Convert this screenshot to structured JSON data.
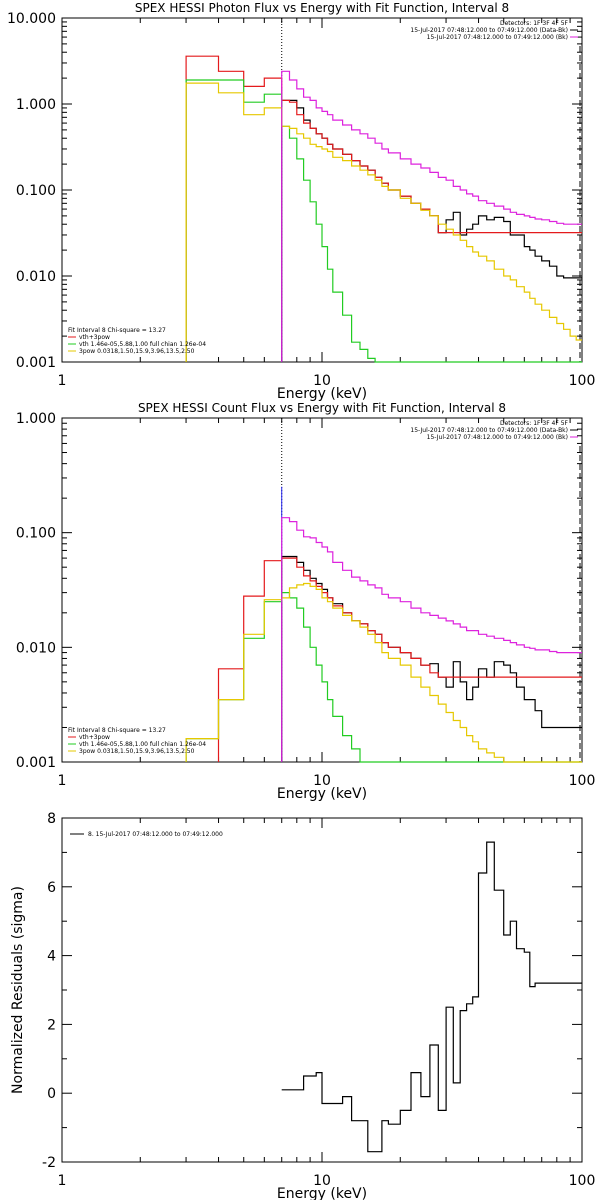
{
  "chart_data": [
    {
      "type": "line",
      "title": "SPEX HESSI Photon Flux vs Energy with Fit Function, Interval 8",
      "xlabel": "Energy (keV)",
      "ylabel": "",
      "xscale": "log",
      "yscale": "log",
      "xlim": [
        1,
        100
      ],
      "ylim": [
        0.001,
        10.0
      ],
      "xtick_labels": [
        "1",
        "10",
        "100"
      ],
      "ytick_labels": [
        "0.001",
        "0.010",
        "0.100",
        "1.000",
        "10.000"
      ],
      "vline": 7.0,
      "legend_topright": [
        "Detectors: 1F 3F 4F 5F",
        "15-Jul-2017 07:48:12.000 to 07:49:12.000 (Data-Bk)",
        "15-Jul-2017 07:48:12.000 to 07:49:12.000 (Bk)"
      ],
      "legend_bottomleft": [
        "Fit Interval 8   Chi-square = 13.27",
        "vth+3pow",
        "vth 1.46e-05,5.88,1.00  full chian 1.26e-04",
        "3pow 0.0318,1.50,15.9,3.96,13.5,2.50"
      ],
      "series": [
        {
          "color": "#000000",
          "x": [
            7.0,
            7.5,
            8.0,
            8.5,
            9.0,
            9.5,
            10.0,
            10.5,
            11.0,
            12.0,
            13.0,
            14.0,
            15.0,
            16.0,
            17.0,
            18.0,
            20.0,
            22.0,
            24.0,
            26.0,
            28.0,
            30.0,
            32.0,
            34.0,
            36.0,
            38.0,
            40.0,
            43.0,
            46.0,
            50.0,
            53.0,
            56.0,
            60.0,
            63.0,
            66.0,
            70.0,
            75.0,
            80.0,
            85.0,
            90.0,
            95.0,
            100.0
          ],
          "y": [
            1.1,
            1.1,
            0.9,
            0.65,
            0.52,
            0.45,
            0.4,
            0.34,
            0.3,
            0.26,
            0.22,
            0.19,
            0.17,
            0.14,
            0.12,
            0.1,
            0.085,
            0.07,
            0.06,
            0.05,
            0.032,
            0.045,
            0.055,
            0.03,
            0.035,
            0.04,
            0.05,
            0.045,
            0.048,
            0.043,
            0.03,
            0.03,
            0.022,
            0.02,
            0.017,
            0.015,
            0.013,
            0.01,
            0.0095,
            0.0095,
            0.0095,
            0.0095
          ]
        },
        {
          "color": "#e41a1c",
          "x": [
            3.0,
            4.0,
            5.0,
            6.0,
            7.0,
            7.5,
            8.0,
            8.5,
            9.0,
            9.5,
            10.0,
            10.5,
            11.0,
            12.0,
            13.0,
            14.0,
            15.0,
            16.0,
            17.0,
            18.0,
            20.0,
            22.0,
            24.0,
            26.0,
            28.0,
            30.0
          ],
          "y": [
            3.6,
            2.4,
            1.6,
            2.0,
            1.1,
            1.05,
            0.75,
            0.6,
            0.52,
            0.45,
            0.4,
            0.34,
            0.3,
            0.26,
            0.22,
            0.19,
            0.17,
            0.14,
            0.12,
            0.1,
            0.085,
            0.07,
            0.06,
            0.05,
            0.032,
            0.032
          ]
        },
        {
          "color": "#22cc22",
          "x": [
            3.0,
            4.0,
            5.0,
            6.0,
            7.0,
            7.5,
            8.0,
            8.5,
            9.0,
            9.5,
            10.0,
            10.5,
            11.0,
            12.0,
            13.0,
            14.0,
            15.0,
            16.0,
            17.0,
            18.0,
            20.0,
            22.0
          ],
          "y": [
            1.9,
            1.9,
            1.05,
            1.3,
            0.55,
            0.4,
            0.23,
            0.13,
            0.073,
            0.04,
            0.022,
            0.012,
            0.0065,
            0.0035,
            0.0017,
            0.0014,
            0.0011,
            0.001,
            0.001,
            0.001,
            0.001,
            0.001
          ]
        },
        {
          "color": "#e6c800",
          "x": [
            3.0,
            4.0,
            5.0,
            6.0,
            7.0,
            7.5,
            8.0,
            8.5,
            9.0,
            9.5,
            10.0,
            10.5,
            11.0,
            12.0,
            13.0,
            14.0,
            15.0,
            16.0,
            17.0,
            18.0,
            20.0,
            22.0,
            24.0,
            26.0,
            28.0,
            30.0,
            32.0,
            34.0,
            36.0,
            38.0,
            40.0,
            43.0,
            46.0,
            50.0,
            53.0,
            56.0,
            60.0,
            63.0,
            66.0,
            70.0,
            75.0,
            80.0,
            85.0,
            90.0,
            95.0,
            100.0
          ],
          "y": [
            1.75,
            1.35,
            0.75,
            0.9,
            0.55,
            0.52,
            0.45,
            0.4,
            0.34,
            0.32,
            0.3,
            0.28,
            0.24,
            0.22,
            0.19,
            0.17,
            0.15,
            0.13,
            0.11,
            0.1,
            0.08,
            0.07,
            0.058,
            0.05,
            0.04,
            0.035,
            0.03,
            0.026,
            0.022,
            0.019,
            0.017,
            0.015,
            0.012,
            0.01,
            0.009,
            0.0075,
            0.0065,
            0.0055,
            0.0047,
            0.004,
            0.0033,
            0.0028,
            0.0024,
            0.002,
            0.0018,
            0.0018
          ]
        },
        {
          "color": "#dd22dd",
          "x": [
            7.0,
            7.5,
            8.0,
            8.5,
            9.0,
            9.5,
            10.0,
            10.5,
            11.0,
            12.0,
            13.0,
            14.0,
            15.0,
            16.0,
            17.0,
            18.0,
            20.0,
            22.0,
            24.0,
            26.0,
            28.0,
            30.0,
            32.0,
            34.0,
            36.0,
            38.0,
            40.0,
            43.0,
            46.0,
            50.0,
            53.0,
            56.0,
            60.0,
            63.0,
            66.0,
            70.0,
            75.0,
            80.0,
            85.0,
            90.0,
            95.0,
            100.0
          ],
          "y": [
            2.4,
            1.9,
            1.5,
            1.2,
            1.1,
            0.9,
            0.82,
            0.75,
            0.65,
            0.57,
            0.5,
            0.45,
            0.4,
            0.35,
            0.3,
            0.27,
            0.23,
            0.2,
            0.18,
            0.16,
            0.14,
            0.13,
            0.11,
            0.1,
            0.09,
            0.085,
            0.075,
            0.07,
            0.065,
            0.06,
            0.055,
            0.052,
            0.05,
            0.048,
            0.046,
            0.045,
            0.043,
            0.041,
            0.04,
            0.04,
            0.04,
            0.04
          ]
        }
      ]
    },
    {
      "type": "line",
      "title": "SPEX HESSI Count Flux vs Energy with Fit Function, Interval 8",
      "xlabel": "Energy (keV)",
      "ylabel": "",
      "xscale": "log",
      "yscale": "log",
      "xlim": [
        1,
        100
      ],
      "ylim": [
        0.001,
        1.0
      ],
      "xtick_labels": [
        "1",
        "10",
        "100"
      ],
      "ytick_labels": [
        "0.001",
        "0.010",
        "0.100",
        "1.000"
      ],
      "vline": 7.0,
      "legend_topright": [
        "Detectors: 1F 3F 4F 5F",
        "15-Jul-2017 07:48:12.000 to 07:49:12.000 (Data-Bk)",
        "15-Jul-2017 07:48:12.000 to 07:49:12.000 (Bk)"
      ],
      "legend_bottomleft": [
        "Fit Interval 8   Chi-square = 13.27",
        "vth+3pow",
        "vth 1.46e-05,5.88,1.00  full chian 1.26e-04",
        "3pow 0.0318,1.50,15.9,3.96,13.5,2.50"
      ],
      "series": [
        {
          "color": "#000000",
          "x": [
            7.0,
            7.5,
            8.0,
            8.5,
            9.0,
            9.5,
            10.0,
            10.5,
            11.0,
            12.0,
            13.0,
            14.0,
            15.0,
            16.0,
            17.0,
            18.0,
            20.0,
            22.0,
            24.0,
            26.0,
            28.0,
            30.0,
            32.0,
            34.0,
            36.0,
            38.0,
            40.0,
            43.0,
            46.0,
            50.0,
            53.0,
            56.0,
            60.0,
            63.0,
            66.0,
            70.0,
            75.0,
            80.0,
            85.0,
            90.0,
            95.0,
            100.0
          ],
          "y": [
            0.062,
            0.062,
            0.055,
            0.047,
            0.04,
            0.036,
            0.032,
            0.027,
            0.024,
            0.02,
            0.017,
            0.016,
            0.014,
            0.013,
            0.011,
            0.01,
            0.009,
            0.008,
            0.007,
            0.0072,
            0.0055,
            0.0045,
            0.0075,
            0.005,
            0.0035,
            0.0045,
            0.0065,
            0.0055,
            0.0075,
            0.007,
            0.006,
            0.0045,
            0.0035,
            0.0035,
            0.0028,
            0.002,
            0.002,
            0.002,
            0.002,
            0.002,
            0.002,
            0.002
          ]
        },
        {
          "color": "#e41a1c",
          "x": [
            4.0,
            5.0,
            6.0,
            7.0,
            7.5,
            8.0,
            8.5,
            9.0,
            9.5,
            10.0,
            10.5,
            11.0,
            12.0,
            13.0,
            14.0,
            15.0,
            16.0,
            17.0,
            18.0,
            20.0,
            22.0,
            24.0,
            26.0,
            28.0,
            30.0
          ],
          "y": [
            0.0065,
            0.028,
            0.057,
            0.06,
            0.06,
            0.05,
            0.042,
            0.038,
            0.034,
            0.03,
            0.027,
            0.023,
            0.02,
            0.017,
            0.016,
            0.014,
            0.013,
            0.011,
            0.01,
            0.009,
            0.008,
            0.007,
            0.006,
            0.0055,
            0.0055
          ]
        },
        {
          "color": "#22cc22",
          "x": [
            3.0,
            4.0,
            5.0,
            6.0,
            7.0,
            7.5,
            8.0,
            8.5,
            9.0,
            9.5,
            10.0,
            10.5,
            11.0,
            12.0,
            13.0,
            14.0,
            15.0,
            16.0,
            17.0,
            18.0
          ],
          "y": [
            0.0016,
            0.0035,
            0.012,
            0.025,
            0.03,
            0.027,
            0.022,
            0.015,
            0.01,
            0.007,
            0.005,
            0.0035,
            0.0025,
            0.0017,
            0.0013,
            0.001,
            0.001,
            0.001,
            0.001,
            0.001
          ]
        },
        {
          "color": "#e6c800",
          "x": [
            3.0,
            4.0,
            5.0,
            6.0,
            7.0,
            7.5,
            8.0,
            8.5,
            9.0,
            9.5,
            10.0,
            10.5,
            11.0,
            12.0,
            13.0,
            14.0,
            15.0,
            16.0,
            17.0,
            18.0,
            20.0,
            22.0,
            24.0,
            26.0,
            28.0,
            30.0,
            32.0,
            34.0,
            36.0,
            38.0,
            40.0,
            43.0,
            46.0,
            50.0,
            53.0,
            56.0,
            60.0
          ],
          "y": [
            0.0016,
            0.0035,
            0.013,
            0.026,
            0.027,
            0.033,
            0.035,
            0.036,
            0.034,
            0.032,
            0.027,
            0.025,
            0.022,
            0.019,
            0.017,
            0.015,
            0.013,
            0.011,
            0.009,
            0.008,
            0.007,
            0.0055,
            0.0045,
            0.0038,
            0.0032,
            0.0027,
            0.0023,
            0.002,
            0.0017,
            0.0015,
            0.0013,
            0.0012,
            0.0011,
            0.001,
            0.001,
            0.001,
            0.001
          ]
        },
        {
          "color": "#dd22dd",
          "x": [
            7.0,
            7.5,
            8.0,
            8.5,
            9.0,
            9.5,
            10.0,
            10.5,
            11.0,
            12.0,
            13.0,
            14.0,
            15.0,
            16.0,
            17.0,
            18.0,
            20.0,
            22.0,
            24.0,
            26.0,
            28.0,
            30.0,
            32.0,
            34.0,
            36.0,
            38.0,
            40.0,
            43.0,
            46.0,
            50.0,
            53.0,
            56.0,
            60.0,
            63.0,
            66.0,
            70.0,
            75.0,
            80.0,
            85.0,
            90.0,
            95.0,
            100.0
          ],
          "y": [
            0.135,
            0.125,
            0.105,
            0.092,
            0.09,
            0.082,
            0.075,
            0.068,
            0.055,
            0.047,
            0.041,
            0.038,
            0.035,
            0.033,
            0.029,
            0.027,
            0.025,
            0.022,
            0.02,
            0.019,
            0.018,
            0.017,
            0.016,
            0.015,
            0.014,
            0.014,
            0.013,
            0.0125,
            0.012,
            0.0115,
            0.011,
            0.0105,
            0.01,
            0.0098,
            0.0095,
            0.0095,
            0.0092,
            0.009,
            0.009,
            0.009,
            0.009,
            0.009
          ]
        }
      ]
    },
    {
      "type": "line",
      "title": "",
      "xlabel": "Energy (keV)",
      "ylabel": "Normalized Residuals (sigma)",
      "xscale": "log",
      "yscale": "linear",
      "xlim": [
        1,
        100
      ],
      "ylim": [
        -2,
        8
      ],
      "xtick_labels": [
        "1",
        "10",
        "100"
      ],
      "ytick_labels": [
        "-2",
        "0",
        "2",
        "4",
        "6",
        "8"
      ],
      "legend_topleft": [
        "8. 15-Jul-2017 07:48:12.000 to 07:49:12.000"
      ],
      "series": [
        {
          "color": "#000000",
          "x": [
            7.0,
            7.5,
            8.0,
            8.5,
            9.0,
            9.5,
            10.0,
            10.5,
            11.0,
            12.0,
            13.0,
            14.0,
            15.0,
            16.0,
            17.0,
            18.0,
            20.0,
            22.0,
            24.0,
            26.0,
            28.0,
            30.0,
            32.0,
            34.0,
            36.0,
            38.0,
            40.0,
            43.0,
            46.0,
            50.0,
            53.0,
            56.0,
            60.0,
            63.0,
            66.0,
            70.0,
            75.0,
            80.0,
            85.0,
            90.0,
            95.0,
            100.0
          ],
          "y": [
            0.1,
            0.1,
            0.1,
            0.5,
            0.5,
            0.6,
            -0.3,
            -0.3,
            -0.3,
            -0.1,
            -0.8,
            -0.8,
            -1.7,
            -1.7,
            -0.8,
            -0.9,
            -0.5,
            0.6,
            -0.1,
            1.4,
            -0.5,
            2.5,
            0.3,
            2.4,
            2.6,
            2.8,
            6.4,
            7.3,
            5.9,
            4.6,
            5.0,
            4.2,
            4.1,
            3.1,
            3.2,
            3.2,
            3.2,
            3.2,
            3.2,
            3.2,
            3.2,
            3.2
          ]
        }
      ]
    }
  ]
}
